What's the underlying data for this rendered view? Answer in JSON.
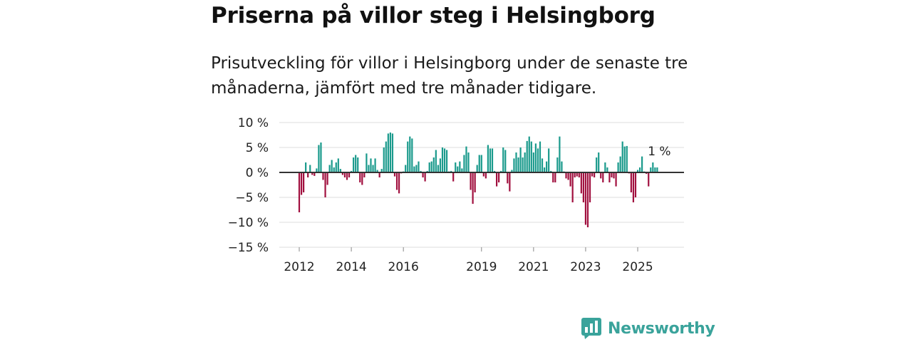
{
  "header": {
    "title": "Priserna på villor steg i Helsingborg",
    "subtitle": "Prisutveckling för villor i Helsingborg under de senaste tre månaderna, jämfört med tre månader tidigare."
  },
  "brand": {
    "name": "Newsworthy",
    "color": "#3aa39b"
  },
  "colors": {
    "positive": "#1a9a8c",
    "negative": "#a1103f",
    "zero_line": "#333333",
    "grid": "#dddddd"
  },
  "chart_data": {
    "type": "bar",
    "title": "Priserna på villor steg i Helsingborg",
    "xlabel": "",
    "ylabel": "",
    "ylim": [
      -15,
      10
    ],
    "y_ticks": [
      10,
      5,
      0,
      -5,
      -10,
      -15
    ],
    "y_tick_labels": [
      "10 %",
      "5 %",
      "0 %",
      "−5 %",
      "−10 %",
      "−15 %"
    ],
    "x_ticks": [
      {
        "label": "2012",
        "index": 0
      },
      {
        "label": "2014",
        "index": 24
      },
      {
        "label": "2016",
        "index": 48
      },
      {
        "label": "2019",
        "index": 84
      },
      {
        "label": "2021",
        "index": 108
      },
      {
        "label": "2023",
        "index": 132
      },
      {
        "label": "2025",
        "index": 156
      }
    ],
    "start": "2012-01",
    "end_label": "1 %",
    "values": [
      -8,
      -4.5,
      -4,
      2,
      -1,
      1.5,
      -0.5,
      -0.7,
      0.8,
      5.5,
      6,
      -1.5,
      -5,
      -2.5,
      1.5,
      2.5,
      1,
      2,
      2.8,
      0.7,
      -0.5,
      -1,
      -1.5,
      -1,
      0.3,
      3,
      3.5,
      3,
      -2,
      -2.5,
      -1,
      3.8,
      1.5,
      2.8,
      1.5,
      2.8,
      0.5,
      -1,
      0.7,
      5,
      6.2,
      7.8,
      8,
      7.8,
      -0.8,
      -3.5,
      -4.2,
      -0.2,
      0.2,
      1.5,
      6.2,
      7.2,
      6.8,
      1.2,
      1.5,
      2.2,
      0.3,
      -1,
      -1.8,
      0.3,
      2,
      2.2,
      3,
      4.5,
      1.5,
      2.8,
      5,
      4.8,
      4.5,
      0.2,
      0.3,
      -1.8,
      2,
      1.2,
      2.2,
      0.8,
      3.5,
      5.2,
      4,
      -3.5,
      -6.3,
      -4,
      1.5,
      3.5,
      3.5,
      -0.8,
      -1.2,
      5.5,
      4.8,
      4.8,
      0.3,
      -2.8,
      -2,
      0.3,
      5,
      4.5,
      -2.2,
      -3.8,
      0.5,
      2.8,
      4,
      3,
      5,
      3,
      4,
      6.3,
      7.2,
      6.2,
      4,
      5.8,
      4.8,
      6.2,
      2.8,
      1,
      2.2,
      4.8,
      0.3,
      -2,
      -2,
      3,
      7.2,
      2.2,
      0.2,
      -1.2,
      -1.5,
      -2.8,
      -6,
      -1,
      -0.8,
      -1,
      -4.2,
      -6,
      -10.5,
      -11,
      -6,
      -0.8,
      -1,
      3,
      4,
      -1.2,
      -2,
      2,
      1,
      -2,
      -1,
      -1.2,
      -2.8,
      2,
      3.2,
      6.2,
      5.2,
      5.3,
      -0.2,
      -4,
      -6,
      -5,
      0.5,
      1,
      3.2,
      0.2,
      -0.3,
      -2.8,
      1,
      2,
      1,
      1
    ]
  }
}
